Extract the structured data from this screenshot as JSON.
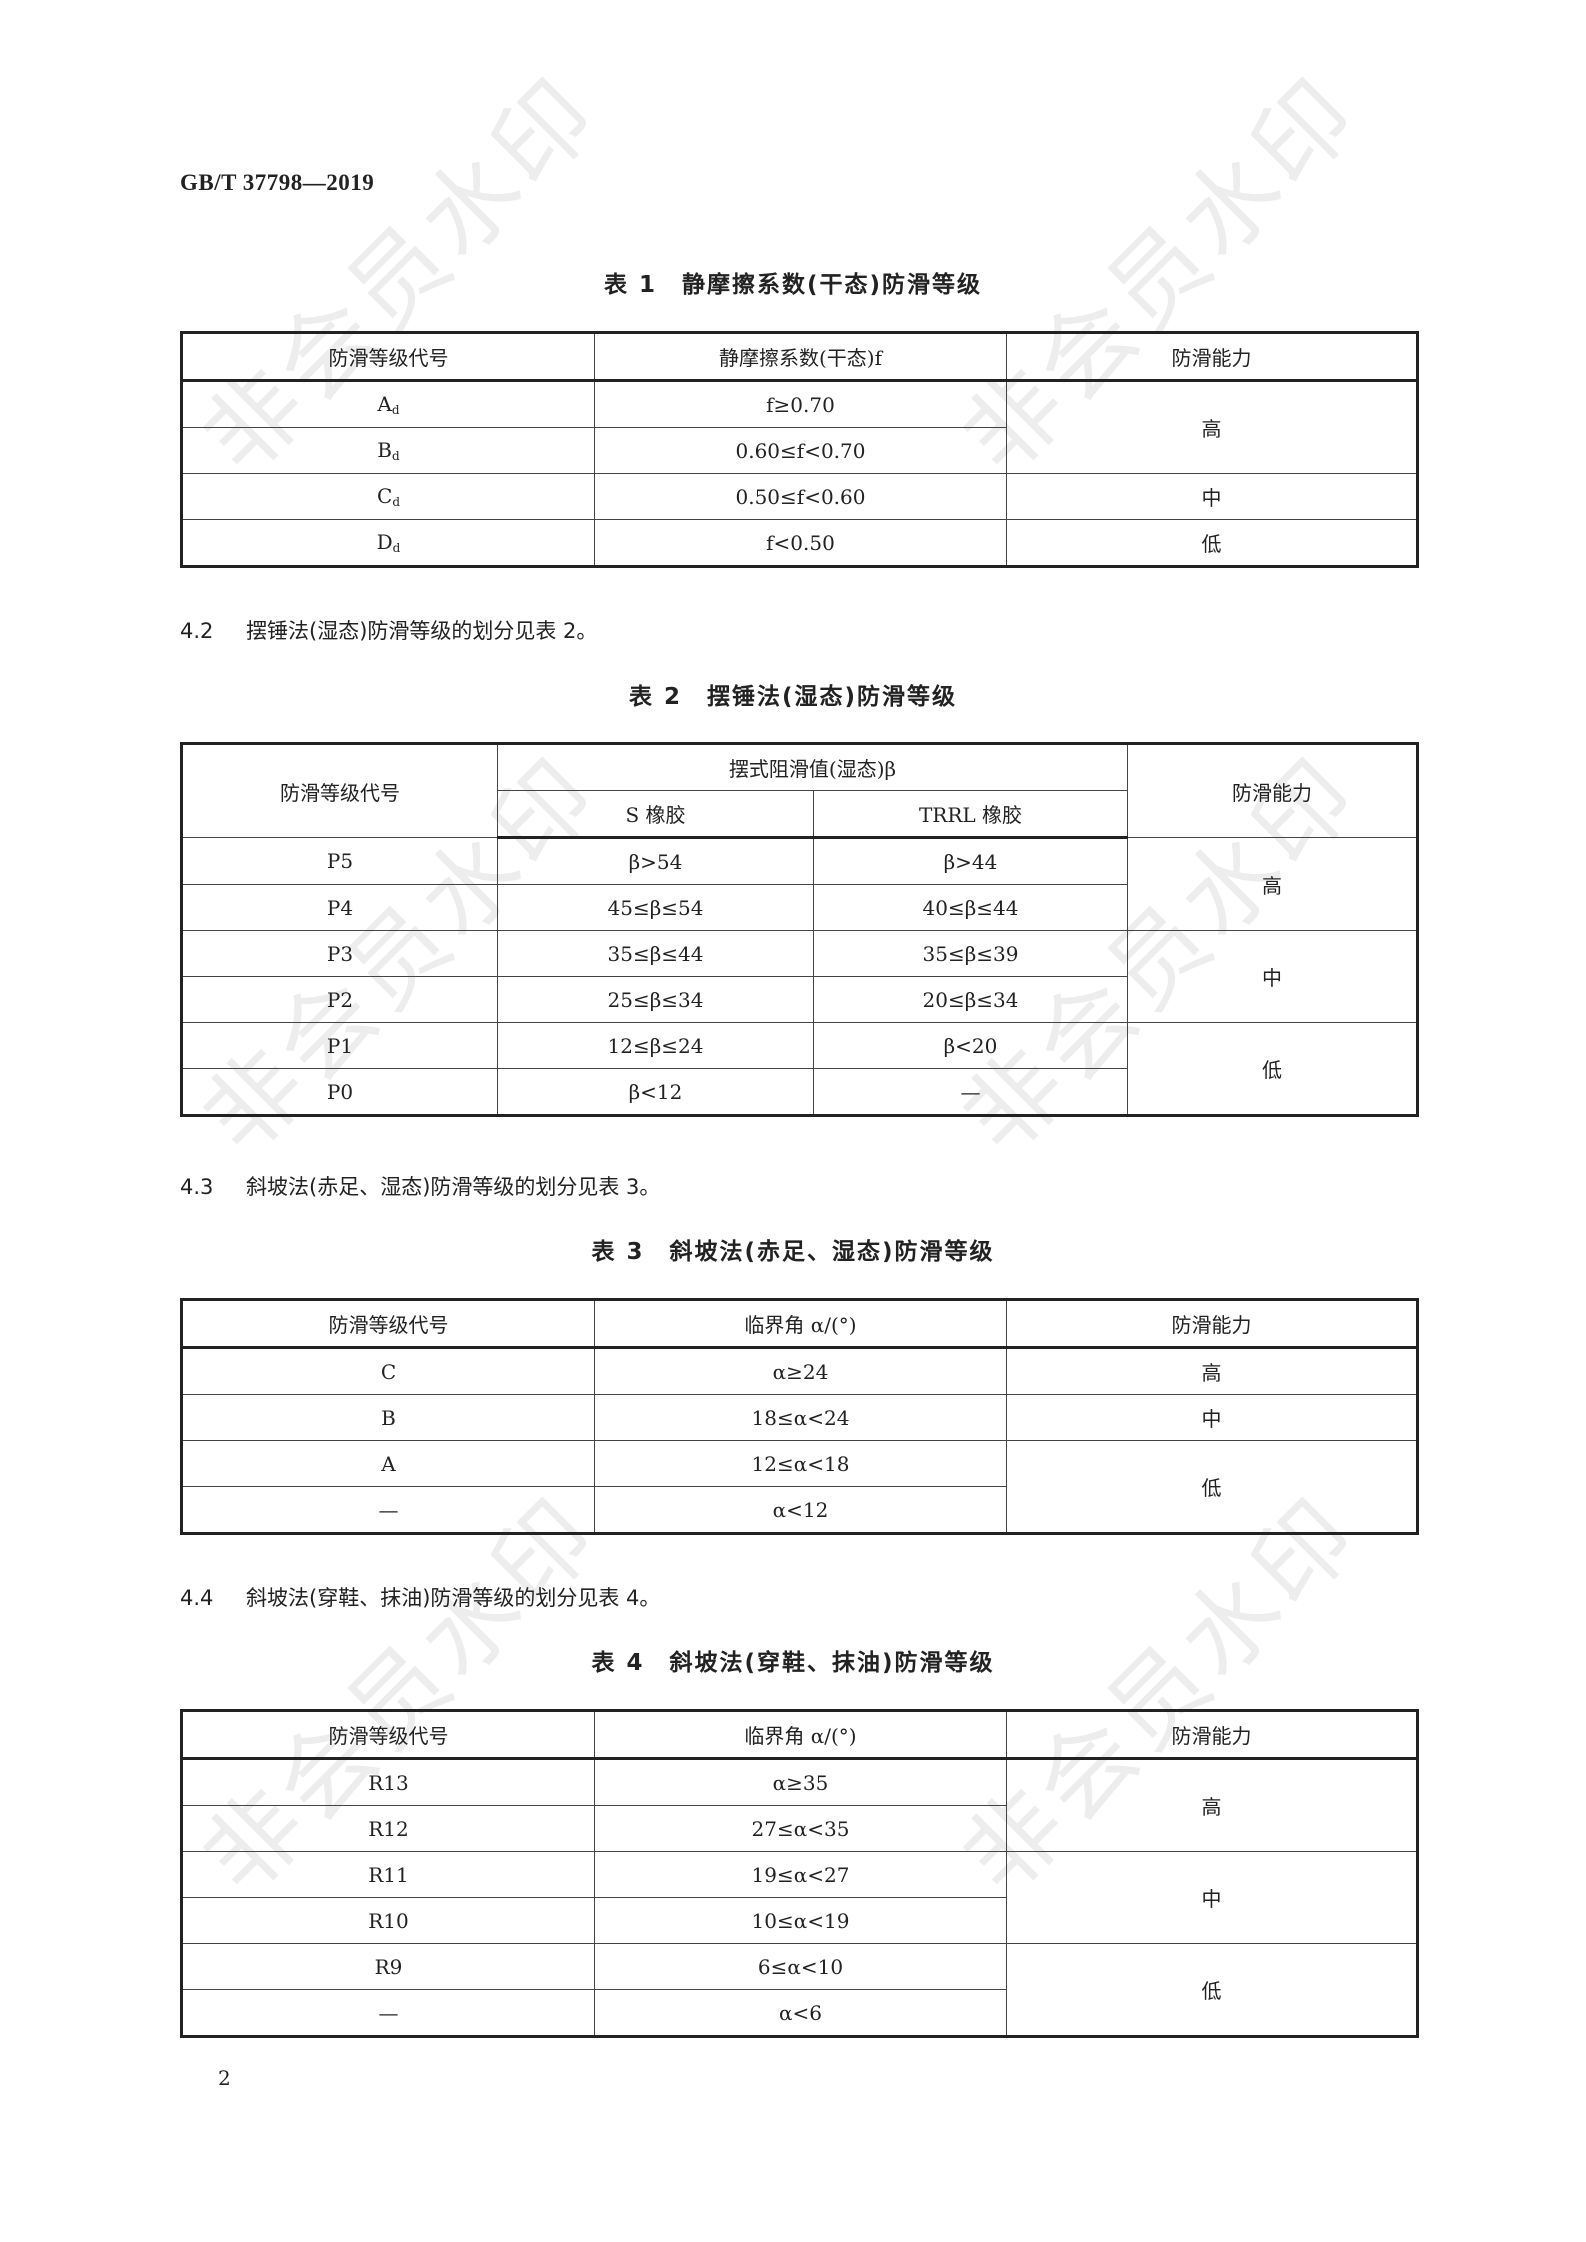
{
  "header": {
    "doc_id": "GB/T 37798—2019"
  },
  "watermark": "非会员水印",
  "table1": {
    "title": "表 1　静摩擦系数(干态)防滑等级",
    "headers": [
      "防滑等级代号",
      "静摩擦系数(干态)f",
      "防滑能力"
    ],
    "rows": [
      {
        "code": "A",
        "sub": "d",
        "value": "f≥0.70"
      },
      {
        "code": "B",
        "sub": "d",
        "value": "0.60≤f<0.70"
      },
      {
        "code": "C",
        "sub": "d",
        "value": "0.50≤f<0.60"
      },
      {
        "code": "D",
        "sub": "d",
        "value": "f<0.50"
      }
    ],
    "levels": [
      "高",
      "中",
      "低"
    ]
  },
  "clause42": {
    "num": "4.2",
    "text": "摆锤法(湿态)防滑等级的划分见表 2。"
  },
  "table2": {
    "title": "表 2　摆锤法(湿态)防滑等级",
    "headers": {
      "code": "防滑等级代号",
      "group": "摆式阻滑值(湿态)β",
      "s": "S 橡胶",
      "trrl": "TRRL 橡胶",
      "level": "防滑能力"
    },
    "rows": [
      {
        "code": "P5",
        "s": "β>54",
        "trrl": "β>44"
      },
      {
        "code": "P4",
        "s": "45≤β≤54",
        "trrl": "40≤β≤44"
      },
      {
        "code": "P3",
        "s": "35≤β≤44",
        "trrl": "35≤β≤39"
      },
      {
        "code": "P2",
        "s": "25≤β≤34",
        "trrl": "20≤β≤34"
      },
      {
        "code": "P1",
        "s": "12≤β≤24",
        "trrl": "β<20"
      },
      {
        "code": "P0",
        "s": "β<12",
        "trrl": "—"
      }
    ],
    "levels": [
      "高",
      "中",
      "低"
    ]
  },
  "clause43": {
    "num": "4.3",
    "text": "斜坡法(赤足、湿态)防滑等级的划分见表 3。"
  },
  "table3": {
    "title": "表 3　斜坡法(赤足、湿态)防滑等级",
    "headers": [
      "防滑等级代号",
      "临界角 α/(°)",
      "防滑能力"
    ],
    "rows": [
      {
        "code": "C",
        "value": "α≥24"
      },
      {
        "code": "B",
        "value": "18≤α<24"
      },
      {
        "code": "A",
        "value": "12≤α<18"
      },
      {
        "code": "—",
        "value": "α<12"
      }
    ],
    "levels": [
      "高",
      "中",
      "低"
    ]
  },
  "clause44": {
    "num": "4.4",
    "text": "斜坡法(穿鞋、抹油)防滑等级的划分见表 4。"
  },
  "table4": {
    "title": "表 4　斜坡法(穿鞋、抹油)防滑等级",
    "headers": [
      "防滑等级代号",
      "临界角 α/(°)",
      "防滑能力"
    ],
    "rows": [
      {
        "code": "R13",
        "value": "α≥35"
      },
      {
        "code": "R12",
        "value": "27≤α<35"
      },
      {
        "code": "R11",
        "value": "19≤α<27"
      },
      {
        "code": "R10",
        "value": "10≤α<19"
      },
      {
        "code": "R9",
        "value": "6≤α<10"
      },
      {
        "code": "—",
        "value": "α<6"
      }
    ],
    "levels": [
      "高",
      "中",
      "低"
    ]
  },
  "footer": {
    "page_number": "2"
  }
}
